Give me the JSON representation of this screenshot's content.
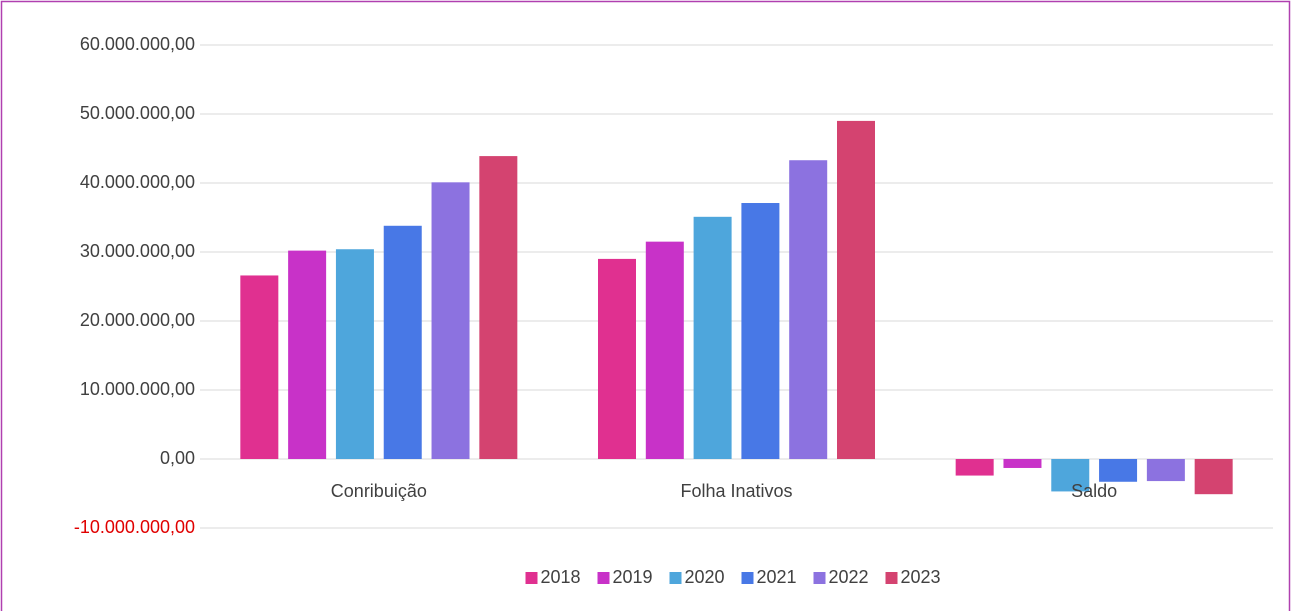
{
  "chart_data": {
    "type": "bar",
    "categories": [
      "Conribuição",
      "Folha Inativos",
      "Saldo"
    ],
    "series": [
      {
        "name": "2018",
        "color": "#e03090",
        "values": [
          26600000,
          29000000,
          -2400000
        ]
      },
      {
        "name": "2019",
        "color": "#c832c8",
        "values": [
          30200000,
          31500000,
          -1300000
        ]
      },
      {
        "name": "2020",
        "color": "#4ea6dc",
        "values": [
          30400000,
          35100000,
          -4700000
        ]
      },
      {
        "name": "2021",
        "color": "#4878e6",
        "values": [
          33800000,
          37100000,
          -3300000
        ]
      },
      {
        "name": "2022",
        "color": "#8c72e0",
        "values": [
          40100000,
          43300000,
          -3200000
        ]
      },
      {
        "name": "2023",
        "color": "#d44370",
        "values": [
          43900000,
          49000000,
          -5100000
        ]
      }
    ],
    "ylim": [
      -10000000,
      60000000
    ],
    "yticks": [
      {
        "value": -10000000,
        "label": "-10.000.000,00"
      },
      {
        "value": 0,
        "label": "0,00"
      },
      {
        "value": 10000000,
        "label": "10.000.000,00"
      },
      {
        "value": 20000000,
        "label": "20.000.000,00"
      },
      {
        "value": 30000000,
        "label": "30.000.000,00"
      },
      {
        "value": 40000000,
        "label": "40.000.000,00"
      },
      {
        "value": 50000000,
        "label": "50.000.000,00"
      },
      {
        "value": 60000000,
        "label": "60.000.000,00"
      }
    ],
    "grid": true,
    "legend": "bottom",
    "negative_tick_color": "#e00000"
  }
}
